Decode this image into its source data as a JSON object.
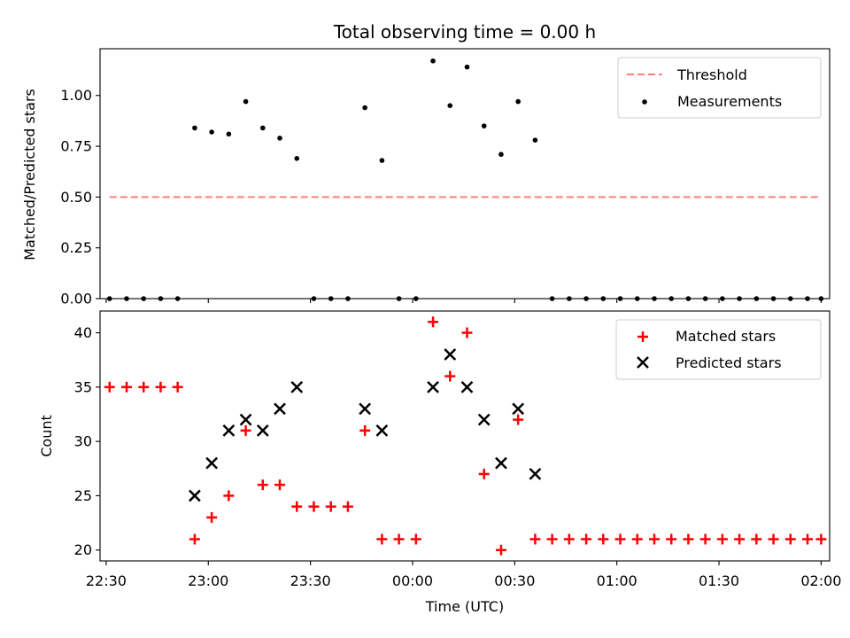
{
  "chart_data": {
    "title": "Total observing time = 0.00 h",
    "xlabel": "Time (UTC)",
    "x_tick_labels": [
      "22:30",
      "23:00",
      "23:30",
      "00:00",
      "00:30",
      "01:00",
      "01:30",
      "02:00"
    ],
    "x_tick_minutes": [
      0,
      30,
      60,
      90,
      120,
      150,
      180,
      210
    ],
    "x_range_minutes": [
      -1.8,
      212.5
    ],
    "times_minutes": [
      1,
      6,
      11,
      16,
      21,
      26,
      31,
      36,
      41,
      46,
      51,
      56,
      61,
      66,
      71,
      76,
      81,
      86,
      91,
      96,
      101,
      106,
      111,
      116,
      121,
      126,
      131,
      136,
      141,
      146,
      151,
      156,
      161,
      166,
      171,
      176,
      181,
      186,
      191,
      196,
      201,
      206,
      210
    ],
    "top": {
      "type": "scatter",
      "ylabel": "Matched/Predicted stars",
      "ylim": [
        0,
        1.23
      ],
      "yticks": [
        0.0,
        0.25,
        0.5,
        0.75,
        1.0
      ],
      "ytick_labels": [
        "0.00",
        "0.25",
        "0.50",
        "0.75",
        "1.00"
      ],
      "threshold": {
        "value": 0.5,
        "x_start": 1,
        "x_end": 210,
        "color": "#ff7f7f"
      },
      "measurements": [
        0,
        0,
        0,
        0,
        0,
        0.84,
        0.82,
        0.81,
        0.97,
        0.84,
        0.79,
        0.69,
        0,
        0,
        0,
        0.94,
        0.68,
        0,
        0,
        1.17,
        0.95,
        1.14,
        0.85,
        0.71,
        0.97,
        0.78,
        0,
        0,
        0,
        0,
        0,
        0,
        0,
        0,
        0,
        0,
        0,
        0,
        0,
        0,
        0,
        0,
        0
      ],
      "measurements_x": [
        1,
        6,
        11,
        16,
        21,
        26,
        31,
        36,
        41,
        46,
        51,
        56,
        61,
        66,
        71,
        76,
        81,
        86,
        91,
        96,
        101,
        106,
        111,
        116,
        121,
        126,
        131,
        136,
        141,
        146,
        151,
        156,
        161,
        166,
        171,
        176,
        181,
        186,
        191,
        196,
        201,
        206,
        210
      ],
      "legend": {
        "position": "upper right",
        "entries": [
          "Threshold",
          "Measurements"
        ]
      }
    },
    "bottom": {
      "type": "scatter",
      "ylabel": "Count",
      "ylim": [
        19,
        42
      ],
      "yticks": [
        20,
        25,
        30,
        35,
        40
      ],
      "ytick_labels": [
        "20",
        "25",
        "30",
        "35",
        "40"
      ],
      "matched": {
        "name": "Matched stars",
        "color": "#ff0000",
        "x": [
          1,
          6,
          11,
          16,
          21,
          26,
          31,
          36,
          41,
          46,
          51,
          56,
          61,
          66,
          71,
          76,
          81,
          86,
          91,
          96,
          101,
          106,
          111,
          116,
          121,
          126,
          131,
          136,
          141,
          146,
          151,
          156,
          161,
          166,
          171,
          176,
          181,
          186,
          191,
          196,
          201,
          206,
          210
        ],
        "values": [
          35,
          35,
          35,
          35,
          35,
          21,
          23,
          25,
          31,
          26,
          26,
          24,
          24,
          24,
          24,
          31,
          21,
          21,
          21,
          41,
          36,
          40,
          27,
          20,
          32,
          21,
          21,
          21,
          21,
          21,
          21,
          21,
          21,
          21,
          21,
          21,
          21,
          21,
          21,
          21,
          21,
          21,
          21
        ]
      },
      "predicted": {
        "name": "Predicted stars",
        "color": "#000000",
        "x": [
          26,
          31,
          36,
          41,
          46,
          51,
          56,
          76,
          81,
          96,
          101,
          106,
          111,
          116,
          121,
          126
        ],
        "values": [
          25,
          28,
          31,
          32,
          31,
          33,
          35,
          33,
          31,
          35,
          38,
          35,
          32,
          28,
          33,
          27
        ]
      },
      "legend": {
        "position": "upper right",
        "entries": [
          "Matched stars",
          "Predicted stars"
        ]
      }
    }
  }
}
